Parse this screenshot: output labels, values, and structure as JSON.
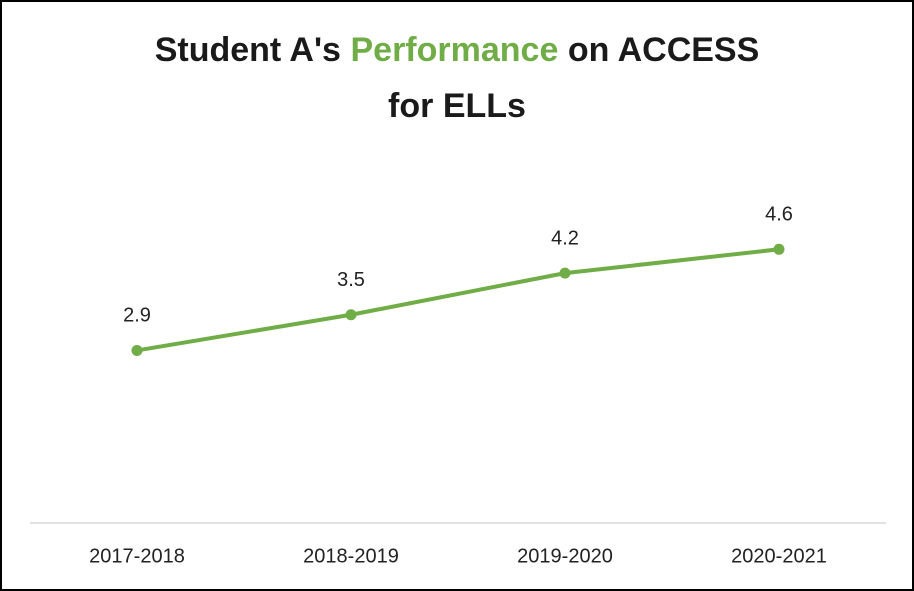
{
  "chart_data": {
    "type": "line",
    "title": [
      "Student A's",
      "Performance",
      "on ACCESS",
      "for ELLs"
    ],
    "title_color": "#1a1a1a",
    "title_highlight_color": "#70ad47",
    "categories": [
      "2017-2018",
      "2018-2019",
      "2019-2020",
      "2020-2021"
    ],
    "values": [
      2.9,
      3.5,
      4.2,
      4.6
    ],
    "color": "#70ad47",
    "ylim": [
      0,
      6
    ],
    "grid": false
  }
}
